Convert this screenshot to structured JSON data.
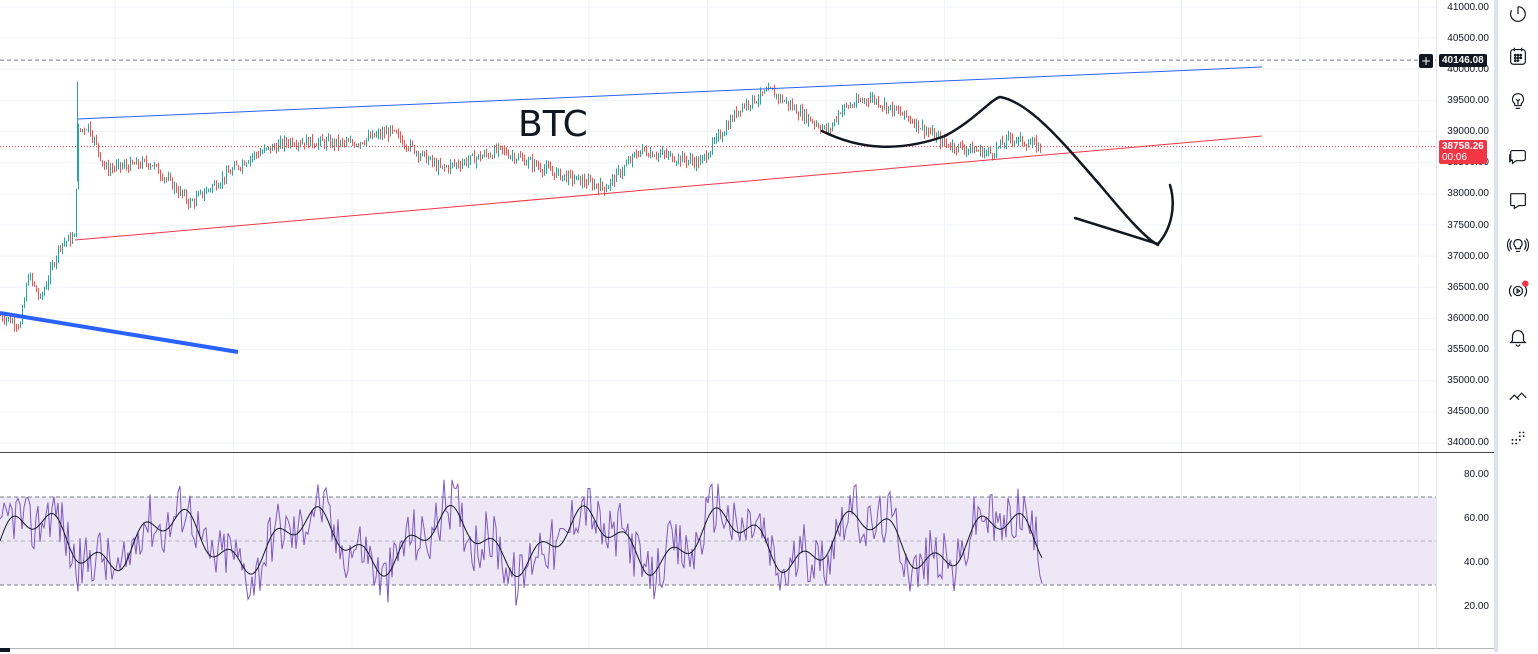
{
  "chart": {
    "symbol_label": "BTC",
    "price_scale_labels": [
      "41000.00",
      "40500.00",
      "40000.00",
      "39500.00",
      "39000.00",
      "38500.00",
      "38000.00",
      "37500.00",
      "37000.00",
      "36500.00",
      "36000.00",
      "35500.00",
      "35000.00",
      "34500.00",
      "34000.00"
    ],
    "rsi_scale_labels": [
      "80.00",
      "60.00",
      "40.00",
      "20.00"
    ],
    "current_price": "38758.26",
    "countdown": "00:06",
    "high_line_price": "40146.08",
    "plus_button": "+"
  },
  "colors": {
    "up": "#26a69a",
    "down": "#ef5350",
    "rsi": "#7e57c2",
    "rsi_band": "#ede7f6",
    "upper_trend": "#2962ff",
    "lower_trend": "#f23645",
    "price_tag": "#f23645"
  },
  "toolbar": {
    "icons": [
      "clock-icon",
      "calendar-icon",
      "lightbulb-icon",
      "chat-icon",
      "comment-icon",
      "ideas-broadcast-icon",
      "live-stream-icon",
      "alert-bell-icon",
      "chevron-hide-icon",
      "more-grid-icon"
    ]
  }
}
